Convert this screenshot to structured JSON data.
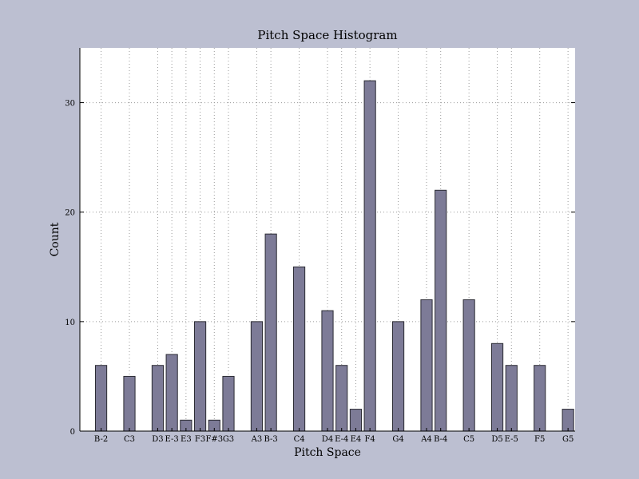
{
  "chart_data": {
    "type": "bar",
    "title": "Pitch Space Histogram",
    "xlabel": "Pitch Space",
    "ylabel": "Count",
    "categories": [
      "B-2",
      "C3",
      "D3",
      "E-3",
      "E3",
      "F3",
      "F#3",
      "G3",
      "A3",
      "B-3",
      "C4",
      "D4",
      "E-4",
      "E4",
      "F4",
      "G4",
      "A4",
      "B-4",
      "C5",
      "D5",
      "E-5",
      "F5",
      "G5"
    ],
    "x": [
      46,
      48,
      50,
      51,
      52,
      53,
      54,
      55,
      57,
      58,
      60,
      62,
      63,
      64,
      65,
      67,
      69,
      70,
      72,
      74,
      75,
      77,
      79
    ],
    "values": [
      6,
      5,
      6,
      7,
      1,
      10,
      1,
      5,
      10,
      18,
      15,
      11,
      6,
      2,
      32,
      10,
      12,
      22,
      12,
      8,
      6,
      6,
      2
    ],
    "xlim": [
      44.5,
      79.5
    ],
    "ylim": [
      0,
      35
    ],
    "yticks": [
      0,
      10,
      20,
      30
    ],
    "grid": true,
    "colors": {
      "background": "#bcbfd1",
      "plot_area": "#ffffff",
      "bar_fill": "#7d7b97",
      "bar_edge": "#2b2b33",
      "grid": "#9a9a9a"
    }
  }
}
